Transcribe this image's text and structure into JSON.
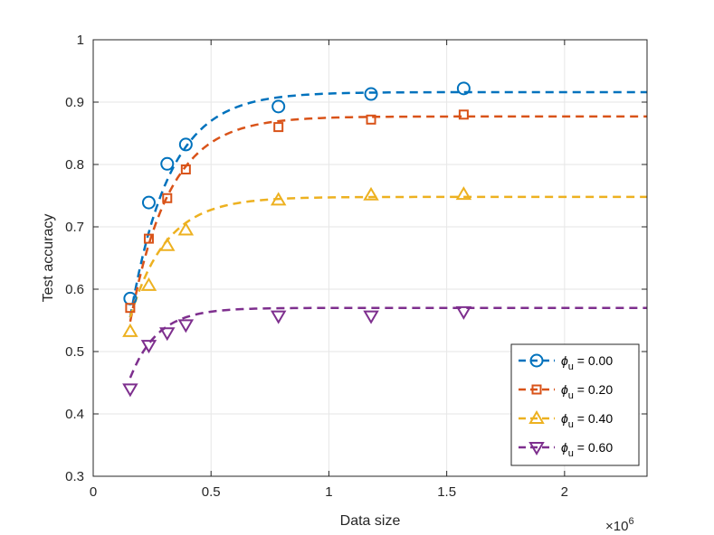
{
  "chart_data": {
    "type": "scatter",
    "xlabel": "Data size",
    "ylabel": "Test accuracy",
    "x_multiplier_label": "×10",
    "x_multiplier_exp": "6",
    "xlim": [
      0,
      2.35
    ],
    "ylim": [
      0.3,
      1.0
    ],
    "xticks": [
      0,
      0.5,
      1,
      1.5,
      2
    ],
    "xtick_labels": [
      "0",
      "0.5",
      "1",
      "1.5",
      "2"
    ],
    "yticks": [
      0.3,
      0.4,
      0.5,
      0.6,
      0.7,
      0.8,
      0.9,
      1.0
    ],
    "ytick_labels": [
      "0.3",
      "0.4",
      "0.5",
      "0.6",
      "0.7",
      "0.8",
      "0.9",
      "1"
    ],
    "grid": true,
    "legend_position": "bottom-right",
    "x": [
      0.157,
      0.236,
      0.314,
      0.393,
      0.786,
      1.179,
      1.572
    ],
    "series": [
      {
        "name": "ϕu = 0.00",
        "legend_symbol": "ϕ",
        "legend_sub": "u",
        "legend_value": " = 0.00",
        "marker": "circle",
        "color": "#0072BD",
        "values": [
          0.585,
          0.739,
          0.801,
          0.832,
          0.893,
          0.913,
          0.922
        ],
        "fit": {
          "asymptote": 0.916,
          "start": 0.555,
          "x0": 0.157,
          "rate": 6.0
        }
      },
      {
        "name": "ϕu = 0.20",
        "legend_symbol": "ϕ",
        "legend_sub": "u",
        "legend_value": " = 0.20",
        "marker": "square",
        "color": "#D95319",
        "values": [
          0.57,
          0.681,
          0.746,
          0.792,
          0.86,
          0.872,
          0.88
        ],
        "fit": {
          "asymptote": 0.877,
          "start": 0.548,
          "x0": 0.157,
          "rate": 6.0
        }
      },
      {
        "name": "ϕu = 0.40",
        "legend_symbol": "ϕ",
        "legend_sub": "u",
        "legend_value": " = 0.40",
        "marker": "triangle-up",
        "color": "#EDB120",
        "values": [
          0.532,
          0.606,
          0.67,
          0.695,
          0.743,
          0.751,
          0.752
        ],
        "fit": {
          "asymptote": 0.748,
          "start": 0.555,
          "x0": 0.157,
          "rate": 6.5
        }
      },
      {
        "name": "ϕu = 0.60",
        "legend_symbol": "ϕ",
        "legend_sub": "u",
        "legend_value": " = 0.60",
        "marker": "triangle-down",
        "color": "#7E2F8E",
        "values": [
          0.44,
          0.51,
          0.53,
          0.543,
          0.557,
          0.557,
          0.564
        ],
        "fit": {
          "asymptote": 0.57,
          "start": 0.458,
          "x0": 0.157,
          "rate": 8.5
        }
      }
    ]
  }
}
